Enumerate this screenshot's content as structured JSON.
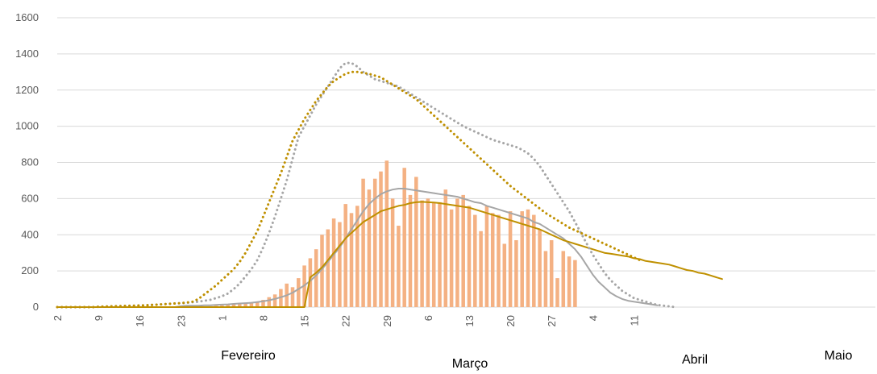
{
  "chart_data": {
    "type": "bar",
    "title": "",
    "xlabel": "",
    "ylabel": "",
    "ylim": [
      0,
      1600
    ],
    "y_ticks": [
      "0",
      "200",
      "400",
      "600",
      "800",
      "1000",
      "1200",
      "1400",
      "1600"
    ],
    "grid": true,
    "legend": "none",
    "x_tick_labels": [
      "2",
      "9",
      "16",
      "23",
      "1",
      "8",
      "15",
      "22",
      "29",
      "6",
      "13",
      "20",
      "27",
      "4",
      "11"
    ],
    "months": [
      "Fevereiro",
      "Março",
      "Abril",
      "Maio"
    ],
    "x_start_day": "Feb 2",
    "bars": {
      "color": "#f4b183",
      "start_day": "Feb 2",
      "values": [
        0,
        0,
        0,
        0,
        0,
        0,
        0,
        0,
        0,
        0,
        0,
        0,
        0,
        0,
        0,
        0,
        0,
        0,
        0,
        0,
        0,
        0,
        0,
        2,
        2,
        3,
        5,
        8,
        10,
        12,
        15,
        20,
        25,
        22,
        30,
        40,
        55,
        70,
        100,
        130,
        110,
        160,
        230,
        270,
        320,
        400,
        430,
        490,
        470,
        570,
        520,
        560,
        710,
        650,
        710,
        750,
        810,
        600,
        450,
        770,
        620,
        720,
        590,
        600,
        580,
        580,
        650,
        540,
        600,
        620,
        560,
        510,
        420,
        560,
        520,
        510,
        350,
        530,
        370,
        530,
        540,
        510,
        430,
        310,
        370,
        160,
        310,
        280,
        260
      ]
    },
    "series": [
      {
        "type": "line",
        "style": "solid",
        "color": "#a6a6a6",
        "start_day": "Feb 2",
        "values": [
          0,
          0,
          0,
          0,
          0,
          0,
          0,
          0,
          0,
          0,
          0,
          0,
          0,
          0,
          0,
          0,
          0,
          0,
          0,
          0,
          0,
          5,
          8,
          8,
          8,
          10,
          10,
          12,
          14,
          15,
          18,
          20,
          22,
          24,
          28,
          32,
          38,
          45,
          55,
          65,
          80,
          100,
          120,
          145,
          175,
          210,
          250,
          290,
          330,
          380,
          430,
          480,
          530,
          570,
          600,
          625,
          640,
          650,
          655,
          655,
          650,
          645,
          640,
          635,
          630,
          625,
          620,
          615,
          610,
          600,
          590,
          580,
          575,
          560,
          550,
          540,
          530,
          520,
          510,
          500,
          490,
          470,
          460,
          440,
          420,
          400,
          380,
          350,
          320,
          280,
          230,
          180,
          140,
          110,
          80,
          60,
          45,
          35,
          30,
          25,
          20,
          15,
          10
        ]
      },
      {
        "type": "line",
        "style": "solid",
        "color": "#bf9000",
        "start_day": "Feb 2",
        "values": [
          0,
          0,
          0,
          0,
          0,
          0,
          0,
          0,
          0,
          0,
          0,
          0,
          0,
          0,
          0,
          0,
          0,
          0,
          0,
          0,
          0,
          0,
          0,
          0,
          0,
          0,
          0,
          0,
          0,
          0,
          0,
          0,
          0,
          0,
          0,
          0,
          0,
          0,
          0,
          0,
          0,
          0,
          0,
          165,
          190,
          220,
          260,
          300,
          340,
          380,
          410,
          440,
          470,
          490,
          510,
          530,
          540,
          550,
          560,
          565,
          575,
          580,
          582,
          580,
          578,
          575,
          570,
          565,
          560,
          555,
          550,
          540,
          530,
          520,
          510,
          500,
          490,
          480,
          470,
          460,
          450,
          440,
          430,
          415,
          400,
          385,
          370,
          360,
          350,
          340,
          330,
          320,
          310,
          300,
          295,
          290,
          285,
          280,
          270,
          265,
          255,
          250,
          245,
          240,
          235,
          225,
          215,
          205,
          200,
          190,
          185,
          175,
          165,
          155
        ]
      },
      {
        "type": "line",
        "style": "dotted",
        "color": "#a6a6a6",
        "start_day": "Feb 2",
        "values": [
          0,
          0,
          0,
          0,
          0,
          0,
          0,
          2,
          3,
          4,
          5,
          6,
          7,
          8,
          9,
          10,
          12,
          14,
          16,
          18,
          20,
          22,
          24,
          27,
          30,
          35,
          40,
          50,
          60,
          75,
          100,
          130,
          170,
          210,
          260,
          330,
          410,
          500,
          600,
          700,
          820,
          940,
          1000,
          1060,
          1120,
          1170,
          1220,
          1270,
          1320,
          1350,
          1350,
          1330,
          1300,
          1280,
          1260,
          1250,
          1240,
          1230,
          1220,
          1200,
          1180,
          1160,
          1140,
          1120,
          1100,
          1080,
          1060,
          1040,
          1020,
          1000,
          985,
          970,
          955,
          940,
          925,
          915,
          905,
          895,
          885,
          870,
          850,
          820,
          780,
          730,
          680,
          630,
          580,
          530,
          470,
          410,
          350,
          290,
          240,
          190,
          150,
          120,
          90,
          70,
          50,
          40,
          30,
          20,
          12,
          8,
          4,
          0
        ]
      },
      {
        "type": "line",
        "style": "dotted",
        "color": "#bf9000",
        "start_day": "Feb 2",
        "values": [
          0,
          0,
          0,
          0,
          0,
          0,
          0,
          2,
          3,
          4,
          5,
          6,
          7,
          8,
          9,
          10,
          12,
          14,
          16,
          18,
          20,
          22,
          25,
          30,
          45,
          70,
          95,
          120,
          150,
          180,
          210,
          250,
          300,
          360,
          420,
          500,
          580,
          660,
          740,
          830,
          920,
          980,
          1040,
          1090,
          1140,
          1180,
          1220,
          1250,
          1270,
          1290,
          1300,
          1300,
          1295,
          1290,
          1280,
          1270,
          1250,
          1230,
          1210,
          1190,
          1170,
          1150,
          1120,
          1090,
          1060,
          1030,
          1000,
          970,
          940,
          910,
          880,
          850,
          820,
          790,
          760,
          730,
          700,
          670,
          645,
          620,
          595,
          570,
          545,
          520,
          500,
          480,
          460,
          440,
          425,
          410,
          395,
          380,
          365,
          350,
          335,
          320,
          305,
          290,
          275,
          260
        ]
      }
    ]
  }
}
